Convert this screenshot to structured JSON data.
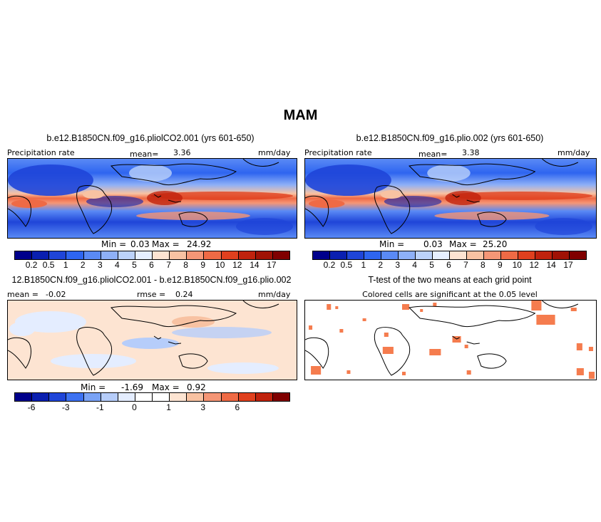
{
  "chart_data": {
    "type": "heatmap",
    "title": "MAM",
    "panels": [
      {
        "id": "tl",
        "title": "b.e12.B1850CN.f09_g16.pliolCO2.001 (yrs 601-650)",
        "left_label": "Precipitation rate",
        "mean_label": "mean=",
        "mean_value": "3.36",
        "units": "mm/day",
        "min_label": "Min =",
        "min_value": "0.03",
        "max_label": "Max =",
        "max_value": "24.92"
      },
      {
        "id": "tr",
        "title": "b.e12.B1850CN.f09_g16.plio.002 (yrs 601-650)",
        "left_label": "Precipitation rate",
        "mean_label": "mean=",
        "mean_value": "3.38",
        "units": "mm/day",
        "min_label": "Min =",
        "min_value": "0.03",
        "max_label": "Max =",
        "max_value": "25.20"
      },
      {
        "id": "bl",
        "title": "12.B1850CN.f09_g16.pliolCO2.001 - b.e12.B1850CN.f09_g16.plio.002",
        "mean_label": "mean =",
        "mean_value": "-0.02",
        "rmse_label": "rmse =",
        "rmse_value": "0.24",
        "units": "mm/day",
        "min_label": "Min =",
        "min_value": "-1.69",
        "max_label": "Max =",
        "max_value": "0.92"
      },
      {
        "id": "br",
        "title": "T-test of the two means at each grid point",
        "subtitle": "Colored cells are significant at the 0.05 level"
      }
    ],
    "precip_levels": [
      "0.2",
      "0.5",
      "1",
      "2",
      "3",
      "4",
      "5",
      "6",
      "7",
      "8",
      "9",
      "10",
      "12",
      "14",
      "17"
    ],
    "precip_colors": [
      "#00008b",
      "#0a1fb0",
      "#1f45d8",
      "#2e65f0",
      "#5a8af5",
      "#8eb0f7",
      "#bcd2fa",
      "#e6efff",
      "#fde4d2",
      "#f8c2a2",
      "#f59676",
      "#ef6a45",
      "#e0401e",
      "#c0220d",
      "#a01205",
      "#800000"
    ],
    "diff_levels": [
      "-6",
      "-3",
      "-1",
      "0",
      "1",
      "3",
      "6"
    ],
    "diff_tick_positions": [
      1,
      3,
      5,
      7,
      9,
      11,
      13
    ],
    "diff_colors": [
      "#00008b",
      "#0a1fb0",
      "#1f45d8",
      "#3d72f2",
      "#7aa3f6",
      "#b6cdfa",
      "#e4edff",
      "#ffffff",
      "#ffffff",
      "#fde4d2",
      "#f8c2a2",
      "#f59676",
      "#ef6a45",
      "#e0401e",
      "#c0220d",
      "#800000"
    ]
  }
}
